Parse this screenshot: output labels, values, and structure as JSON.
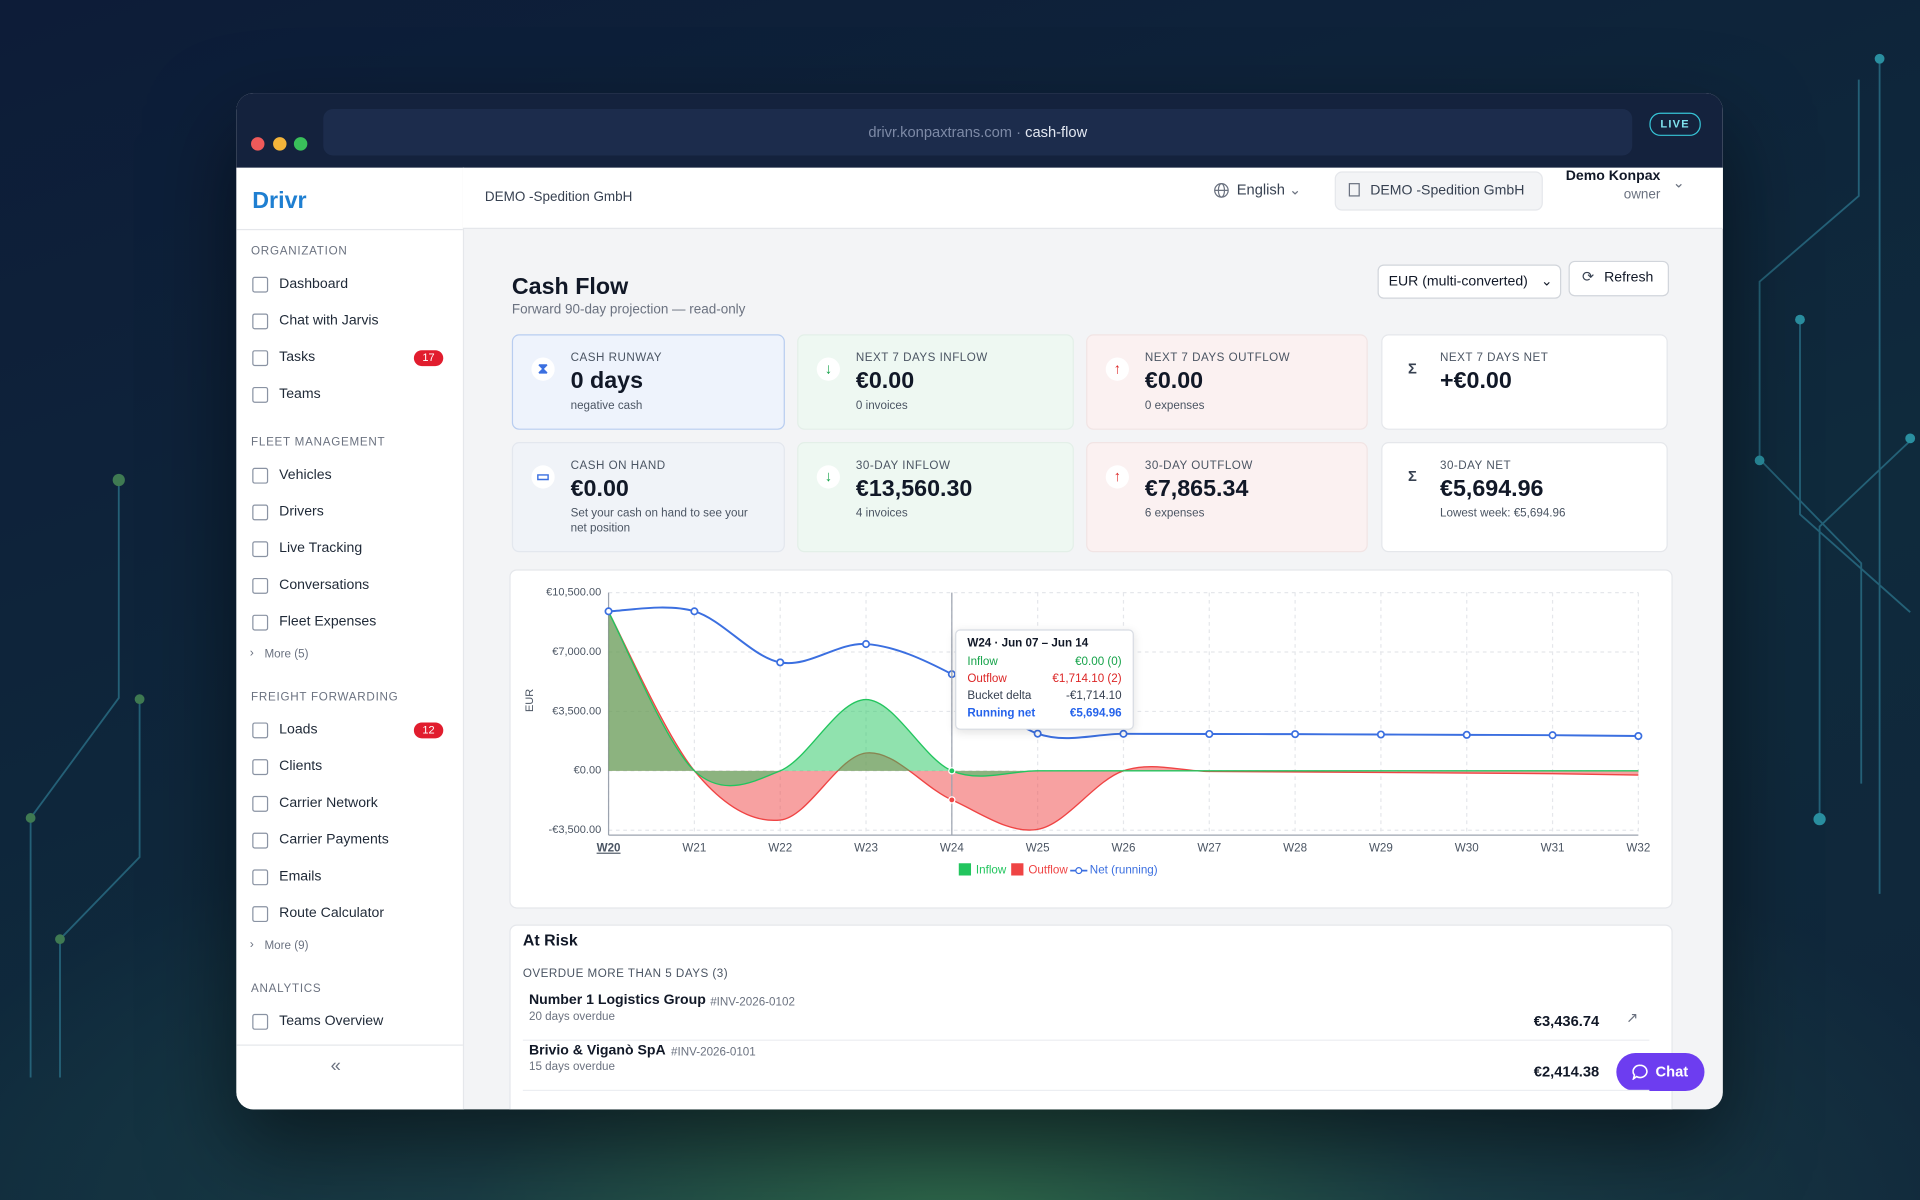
{
  "browser": {
    "url_host": "drivr.konpaxtrans.com ·",
    "url_path": "cash-flow",
    "live": "LIVE"
  },
  "sidebar": {
    "brand": "Drivr",
    "sections": [
      {
        "title": "ORGANIZATION",
        "items": [
          {
            "label": "Dashboard"
          },
          {
            "label": "Chat with Jarvis"
          },
          {
            "label": "Tasks",
            "badge": "17"
          },
          {
            "label": "Teams"
          }
        ]
      },
      {
        "title": "FLEET MANAGEMENT",
        "items": [
          {
            "label": "Vehicles"
          },
          {
            "label": "Drivers"
          },
          {
            "label": "Live Tracking"
          },
          {
            "label": "Conversations"
          },
          {
            "label": "Fleet Expenses"
          }
        ],
        "more": "More (5)"
      },
      {
        "title": "FREIGHT FORWARDING",
        "items": [
          {
            "label": "Loads",
            "badge": "12"
          },
          {
            "label": "Clients"
          },
          {
            "label": "Carrier Network"
          },
          {
            "label": "Carrier Payments"
          },
          {
            "label": "Emails"
          },
          {
            "label": "Route Calculator"
          }
        ],
        "more": "More (9)"
      },
      {
        "title": "ANALYTICS",
        "items": [
          {
            "label": "Teams Overview"
          }
        ]
      }
    ],
    "collapse": "«"
  },
  "header": {
    "org": "DEMO -Spedition GmbH",
    "language": "English",
    "org_switch": "DEMO -Spedition GmbH",
    "user": "Demo Konpax",
    "role": "owner"
  },
  "page": {
    "title": "Cash Flow",
    "subtitle": "Forward 90-day projection — read-only",
    "currency": "EUR (multi-converted)",
    "refresh": "Refresh"
  },
  "kpis": [
    {
      "label": "CASH RUNWAY",
      "value": "0 days",
      "note": "negative cash"
    },
    {
      "label": "NEXT 7 DAYS INFLOW",
      "value": "€0.00",
      "note": "0 invoices"
    },
    {
      "label": "NEXT 7 DAYS OUTFLOW",
      "value": "€0.00",
      "note": "0 expenses"
    },
    {
      "label": "NEXT 7 DAYS NET",
      "value": "+€0.00"
    },
    {
      "label": "CASH ON HAND",
      "value": "€0.00",
      "note": "Set your cash on hand to see your net position"
    },
    {
      "label": "30-DAY INFLOW",
      "value": "€13,560.30",
      "note": "4 invoices"
    },
    {
      "label": "30-DAY OUTFLOW",
      "value": "€7,865.34",
      "note": "6 expenses"
    },
    {
      "label": "30-DAY NET",
      "value": "€5,694.96",
      "note": "Lowest week: €5,694.96"
    }
  ],
  "chart_data": {
    "type": "line",
    "ylabel": "EUR",
    "categories": [
      "W20",
      "W21",
      "W22",
      "W23",
      "W24",
      "W25",
      "W26",
      "W27",
      "W28",
      "W29",
      "W30",
      "W31",
      "W32"
    ],
    "series": [
      {
        "name": "Inflow",
        "color": "#22c55e",
        "values": [
          9360,
          0,
          0,
          4200,
          0,
          0,
          0,
          0,
          0,
          0,
          0,
          0,
          0
        ]
      },
      {
        "name": "Outflow",
        "color": "#ef4444",
        "values": [
          9360,
          0,
          -2900,
          1050,
          -1714.1,
          -3450,
          0,
          -40,
          -70,
          -100,
          -130,
          -170,
          -250
        ]
      },
      {
        "name": "Net (running)",
        "color": "#3b6fe0",
        "values": [
          9400,
          9400,
          6390,
          7470,
          5694.96,
          2190,
          2180,
          2170,
          2160,
          2140,
          2120,
          2100,
          2050
        ]
      }
    ],
    "ylim": [
      -3500,
      10500
    ],
    "yticks": [
      {
        "value": -3500,
        "label": "-€3,500.00"
      },
      {
        "value": 0,
        "label": "€0.00"
      },
      {
        "value": 3500,
        "label": "€3,500.00"
      },
      {
        "value": 7000,
        "label": "€7,000.00"
      },
      {
        "value": 10500,
        "label": "€10,500.00"
      }
    ],
    "grid": true
  },
  "tooltip": {
    "title": "W24 · Jun 07 – Jun 14",
    "rows": [
      {
        "label": "Inflow",
        "value": "€0.00 (0)"
      },
      {
        "label": "Outflow",
        "value": "€1,714.10 (2)"
      },
      {
        "label": "Bucket delta",
        "value": "-€1,714.10"
      },
      {
        "label": "Running net",
        "value": "€5,694.96"
      }
    ]
  },
  "at_risk": {
    "title": "At Risk",
    "group": "OVERDUE MORE THAN 5 DAYS (3)",
    "rows": [
      {
        "name": "Number 1 Logistics Group",
        "ref": "#INV-2026-0102",
        "note": "20 days overdue",
        "amount": "€3,436.74"
      },
      {
        "name": "Brivio & Viganò SpA",
        "ref": "#INV-2026-0101",
        "note": "15 days overdue",
        "amount": "€2,414.38"
      }
    ]
  },
  "chat": "Chat"
}
